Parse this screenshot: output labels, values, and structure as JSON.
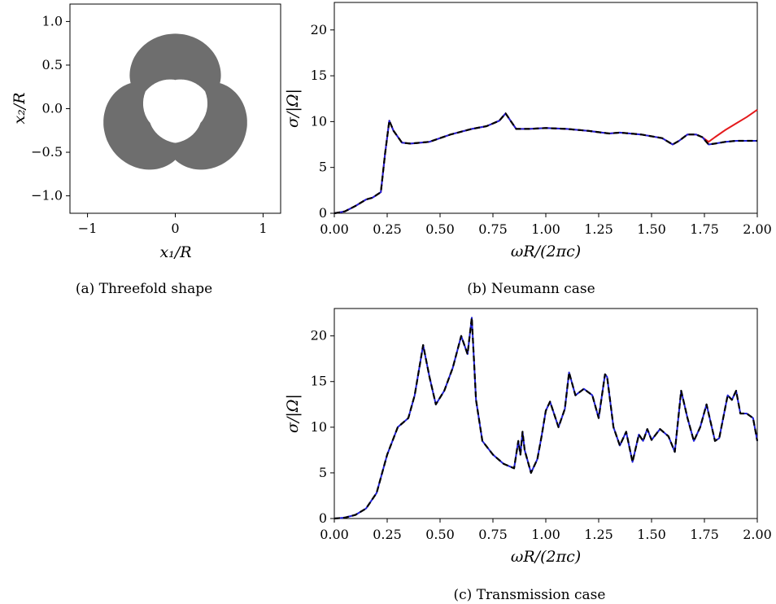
{
  "chart_data": [
    {
      "type": "shape",
      "caption": "(a) Threefold shape",
      "xlabel": "x₁/R",
      "ylabel": "x₂/R",
      "xlim": [
        -1.2,
        1.2
      ],
      "ylim": [
        -1.2,
        1.2
      ],
      "xticks": [
        "−1",
        "0",
        "1"
      ],
      "yticks": [
        "1.0",
        "0.5",
        "0.0",
        "−0.5",
        "−1.0"
      ],
      "fill_color": "#6e6e6e",
      "lobes": [
        {
          "name": "top",
          "angle_deg": 90
        },
        {
          "name": "lower-left",
          "angle_deg": 210
        },
        {
          "name": "lower-right",
          "angle_deg": 330
        }
      ]
    },
    {
      "type": "line",
      "caption": "(b) Neumann case",
      "xlabel": "ωR/(2πc)",
      "ylabel": "σ/|Ω|",
      "xlim": [
        0,
        2
      ],
      "ylim": [
        0,
        23
      ],
      "xticks": [
        "0.00",
        "0.25",
        "0.50",
        "0.75",
        "1.00",
        "1.25",
        "1.50",
        "1.75",
        "2.00"
      ],
      "yticks": [
        "0",
        "5",
        "10",
        "15",
        "20"
      ],
      "series": [
        {
          "color": "#e41a1c",
          "style": "solid",
          "x": [
            0,
            0.05,
            0.1,
            0.15,
            0.18,
            0.22,
            0.24,
            0.26,
            0.28,
            0.32,
            0.36,
            0.45,
            0.55,
            0.65,
            0.72,
            0.78,
            0.81,
            0.83,
            0.86,
            0.92,
            1.0,
            1.1,
            1.2,
            1.3,
            1.35,
            1.45,
            1.55,
            1.6,
            1.63,
            1.67,
            1.71,
            1.74,
            1.77,
            1.8,
            1.85,
            1.9,
            1.95,
            2.0
          ],
          "y": [
            0,
            0.2,
            0.8,
            1.5,
            1.7,
            2.3,
            6.5,
            10.1,
            9.0,
            7.7,
            7.6,
            7.8,
            8.6,
            9.2,
            9.5,
            10.1,
            10.9,
            10.2,
            9.2,
            9.2,
            9.3,
            9.2,
            9.0,
            8.7,
            8.8,
            8.6,
            8.2,
            7.5,
            7.9,
            8.6,
            8.6,
            8.3,
            7.8,
            8.3,
            9.1,
            9.8,
            10.5,
            11.3
          ]
        },
        {
          "color": "#1f1fd6",
          "style": "solid",
          "x": [
            0,
            0.05,
            0.1,
            0.15,
            0.18,
            0.22,
            0.24,
            0.26,
            0.28,
            0.32,
            0.36,
            0.45,
            0.55,
            0.65,
            0.72,
            0.78,
            0.81,
            0.83,
            0.86,
            0.92,
            1.0,
            1.1,
            1.2,
            1.3,
            1.35,
            1.45,
            1.55,
            1.6,
            1.63,
            1.67,
            1.71,
            1.74,
            1.77,
            1.8,
            1.85,
            1.9,
            1.95,
            2.0
          ],
          "y": [
            0,
            0.2,
            0.8,
            1.5,
            1.7,
            2.3,
            6.5,
            10.1,
            9.0,
            7.7,
            7.6,
            7.8,
            8.6,
            9.2,
            9.5,
            10.1,
            10.9,
            10.2,
            9.2,
            9.2,
            9.3,
            9.2,
            9.0,
            8.7,
            8.8,
            8.6,
            8.2,
            7.5,
            7.9,
            8.6,
            8.6,
            8.3,
            7.5,
            7.6,
            7.8,
            7.9,
            7.9,
            7.9
          ]
        },
        {
          "color": "#000000",
          "style": "dashed",
          "x": [
            0,
            0.05,
            0.1,
            0.15,
            0.18,
            0.22,
            0.24,
            0.26,
            0.28,
            0.32,
            0.36,
            0.45,
            0.55,
            0.65,
            0.72,
            0.78,
            0.81,
            0.83,
            0.86,
            0.92,
            1.0,
            1.1,
            1.2,
            1.3,
            1.35,
            1.45,
            1.55,
            1.6,
            1.63,
            1.67,
            1.71,
            1.74,
            1.77,
            1.8,
            1.85,
            1.9,
            1.95,
            2.0
          ],
          "y": [
            0,
            0.2,
            0.8,
            1.5,
            1.7,
            2.3,
            6.5,
            10.1,
            9.0,
            7.7,
            7.6,
            7.8,
            8.6,
            9.2,
            9.5,
            10.1,
            10.9,
            10.2,
            9.2,
            9.2,
            9.3,
            9.2,
            9.0,
            8.7,
            8.8,
            8.6,
            8.2,
            7.5,
            7.9,
            8.6,
            8.6,
            8.3,
            7.5,
            7.6,
            7.8,
            7.9,
            7.9,
            7.9
          ]
        }
      ]
    },
    {
      "type": "line",
      "caption": "(c) Transmission case",
      "xlabel": "ωR/(2πc)",
      "ylabel": "σ/|Ω|",
      "xlim": [
        0,
        2
      ],
      "ylim": [
        0,
        23
      ],
      "xticks": [
        "0.00",
        "0.25",
        "0.50",
        "0.75",
        "1.00",
        "1.25",
        "1.50",
        "1.75",
        "2.00"
      ],
      "yticks": [
        "0",
        "5",
        "10",
        "15",
        "20"
      ],
      "series": [
        {
          "color": "#1f1fd6",
          "style": "solid",
          "x": [
            0,
            0.05,
            0.1,
            0.15,
            0.2,
            0.25,
            0.3,
            0.35,
            0.38,
            0.42,
            0.45,
            0.48,
            0.52,
            0.56,
            0.6,
            0.63,
            0.65,
            0.67,
            0.7,
            0.75,
            0.8,
            0.85,
            0.87,
            0.88,
            0.89,
            0.9,
            0.93,
            0.96,
            0.98,
            1.0,
            1.02,
            1.06,
            1.09,
            1.11,
            1.14,
            1.18,
            1.22,
            1.25,
            1.28,
            1.29,
            1.32,
            1.35,
            1.38,
            1.41,
            1.44,
            1.46,
            1.48,
            1.5,
            1.54,
            1.58,
            1.61,
            1.64,
            1.67,
            1.7,
            1.73,
            1.76,
            1.8,
            1.82,
            1.86,
            1.88,
            1.9,
            1.92,
            1.95,
            1.98,
            2.0
          ],
          "y": [
            0,
            0.1,
            0.4,
            1.1,
            2.8,
            7.0,
            10.0,
            11.0,
            13.5,
            19.0,
            15.5,
            12.5,
            14.0,
            16.5,
            20.0,
            18.0,
            22.0,
            13.0,
            8.5,
            7.0,
            6.0,
            5.5,
            8.5,
            7.0,
            9.5,
            7.5,
            5.0,
            6.5,
            9.0,
            11.8,
            12.8,
            10.0,
            12.0,
            16.0,
            13.5,
            14.2,
            13.5,
            11.0,
            15.8,
            15.5,
            10.0,
            8.0,
            9.5,
            6.2,
            9.2,
            8.5,
            9.8,
            8.6,
            9.8,
            9.0,
            7.3,
            14.0,
            11.0,
            8.5,
            10.0,
            12.5,
            8.5,
            8.8,
            13.5,
            13.0,
            14.0,
            11.5,
            11.5,
            11.0,
            8.5
          ]
        },
        {
          "color": "#000000",
          "style": "dashed",
          "x": [
            0,
            0.05,
            0.1,
            0.15,
            0.2,
            0.25,
            0.3,
            0.35,
            0.38,
            0.42,
            0.45,
            0.48,
            0.52,
            0.56,
            0.6,
            0.63,
            0.65,
            0.67,
            0.7,
            0.75,
            0.8,
            0.85,
            0.87,
            0.88,
            0.89,
            0.9,
            0.93,
            0.96,
            0.98,
            1.0,
            1.02,
            1.06,
            1.09,
            1.11,
            1.14,
            1.18,
            1.22,
            1.25,
            1.28,
            1.29,
            1.32,
            1.35,
            1.38,
            1.41,
            1.44,
            1.46,
            1.48,
            1.5,
            1.54,
            1.58,
            1.61,
            1.64,
            1.67,
            1.7,
            1.73,
            1.76,
            1.8,
            1.82,
            1.86,
            1.88,
            1.9,
            1.92,
            1.95,
            1.98,
            2.0
          ],
          "y": [
            0,
            0.1,
            0.4,
            1.1,
            2.8,
            7.0,
            10.0,
            11.0,
            13.5,
            19.0,
            15.5,
            12.5,
            14.0,
            16.5,
            20.0,
            18.0,
            22.0,
            13.0,
            8.5,
            7.0,
            6.0,
            5.5,
            8.5,
            7.0,
            9.5,
            7.5,
            5.0,
            6.5,
            9.0,
            11.8,
            12.8,
            10.0,
            12.0,
            16.0,
            13.5,
            14.2,
            13.5,
            11.0,
            15.8,
            15.5,
            10.0,
            8.0,
            9.5,
            6.2,
            9.2,
            8.5,
            9.8,
            8.6,
            9.8,
            9.0,
            7.3,
            14.0,
            11.0,
            8.5,
            10.0,
            12.5,
            8.5,
            8.8,
            13.5,
            13.0,
            14.0,
            11.5,
            11.5,
            11.0,
            8.5
          ]
        }
      ]
    }
  ]
}
